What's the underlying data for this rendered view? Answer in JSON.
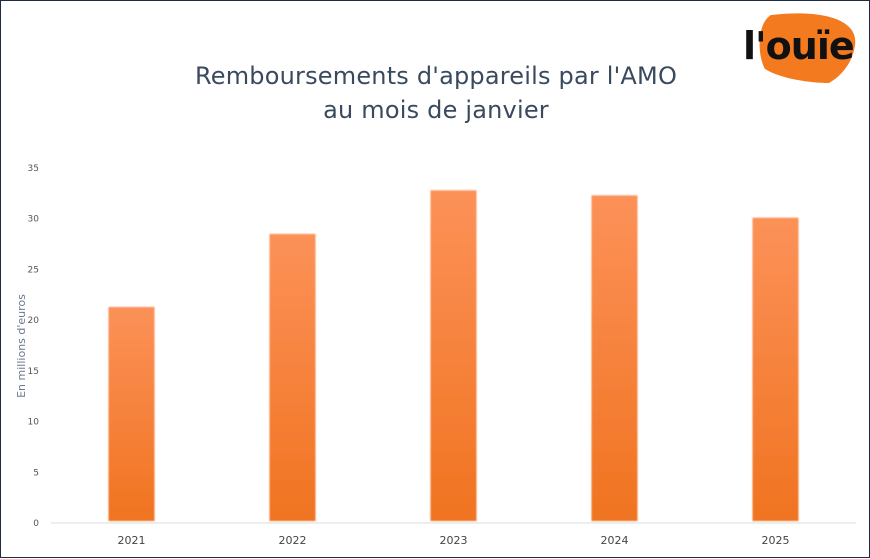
{
  "logo": {
    "text": "l'ouïe",
    "color": "#f47a1f"
  },
  "chart_data": {
    "type": "bar",
    "title_lines": [
      "Remboursements d'appareils par l'AMO",
      "au mois de janvier"
    ],
    "xlabel": "",
    "ylabel": "En millions d'euros",
    "categories": [
      "2021",
      "2022",
      "2023",
      "2024",
      "2025"
    ],
    "values": [
      21.3,
      28.5,
      32.8,
      32.3,
      30.1
    ],
    "ylim": [
      0,
      35
    ],
    "yticks": [
      0,
      5,
      10,
      15,
      20,
      25,
      30,
      35
    ],
    "grid": false,
    "legend": "none",
    "bar_color_top": "#fc9158",
    "bar_color_bottom": "#f07320"
  }
}
